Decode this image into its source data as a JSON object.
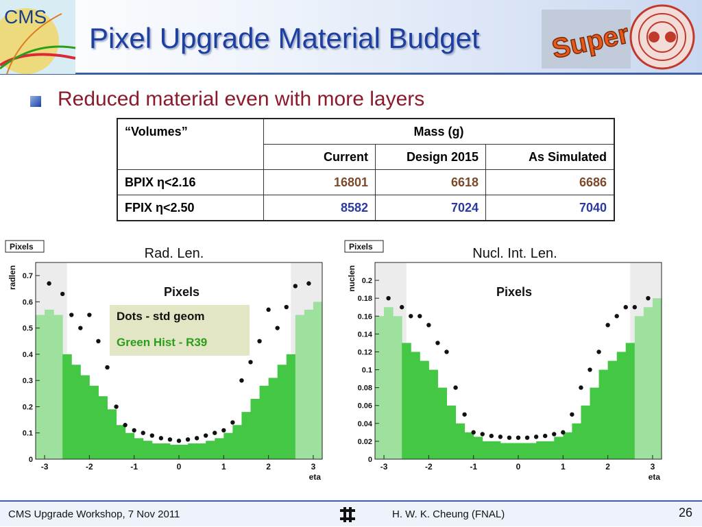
{
  "header": {
    "title": "Pixel Upgrade Material Budget",
    "logo_text": "CMS",
    "super_logo_text": "Super"
  },
  "bullet": "Reduced material even with more layers",
  "table": {
    "corner": "“Volumes”",
    "group_header": "Mass (g)",
    "columns": [
      "Current",
      "Design 2015",
      "As Simulated"
    ],
    "rows": [
      {
        "label": "BPIX η<2.16",
        "values": [
          "16801",
          "6618",
          "6686"
        ]
      },
      {
        "label": "FPIX η<2.50",
        "values": [
          "8582",
          "7024",
          "7040"
        ]
      }
    ]
  },
  "legend": {
    "line1": "Dots - std geom",
    "line2": "Green Hist - R39"
  },
  "colors": {
    "title": "#1f3fa0",
    "bullet_text": "#8b1a2a",
    "hist_green": "#44c744",
    "hist_light": "#9ee09e",
    "brown_values": "#7a4a2a",
    "blue_values": "#2a3aa0"
  },
  "chart_data": [
    {
      "type": "bar",
      "tag": "Pixels",
      "title": "Rad. Len.",
      "inner_title": "Pixels",
      "xlabel": "eta",
      "ylabel": "radlen",
      "xlim": [
        -3.2,
        3.2
      ],
      "ylim": [
        0,
        0.75
      ],
      "xticks": [
        -3,
        -2,
        -1,
        0,
        1,
        2,
        3
      ],
      "yticks": [
        0,
        0.1,
        0.2,
        0.3,
        0.4,
        0.5,
        0.6,
        0.7
      ],
      "series": [
        {
          "name": "Green Hist - R39",
          "x": [
            -3.1,
            -2.9,
            -2.7,
            -2.5,
            -2.3,
            -2.1,
            -1.9,
            -1.7,
            -1.5,
            -1.3,
            -1.1,
            -0.9,
            -0.7,
            -0.5,
            -0.3,
            -0.1,
            0.1,
            0.3,
            0.5,
            0.7,
            0.9,
            1.1,
            1.3,
            1.5,
            1.7,
            1.9,
            2.1,
            2.3,
            2.5,
            2.7,
            2.9,
            3.1
          ],
          "values": [
            0.55,
            0.57,
            0.55,
            0.4,
            0.36,
            0.32,
            0.28,
            0.24,
            0.19,
            0.13,
            0.1,
            0.08,
            0.07,
            0.06,
            0.06,
            0.055,
            0.055,
            0.06,
            0.06,
            0.07,
            0.08,
            0.1,
            0.13,
            0.18,
            0.23,
            0.28,
            0.31,
            0.36,
            0.4,
            0.55,
            0.57,
            0.6
          ]
        },
        {
          "name": "Dots - std geom",
          "x": [
            -2.9,
            -2.6,
            -2.4,
            -2.2,
            -2.0,
            -1.8,
            -1.6,
            -1.4,
            -1.2,
            -1.0,
            -0.8,
            -0.6,
            -0.4,
            -0.2,
            0.0,
            0.2,
            0.4,
            0.6,
            0.8,
            1.0,
            1.2,
            1.4,
            1.6,
            1.8,
            2.0,
            2.2,
            2.4,
            2.6,
            2.9
          ],
          "values": [
            0.67,
            0.63,
            0.55,
            0.5,
            0.55,
            0.45,
            0.35,
            0.2,
            0.13,
            0.11,
            0.1,
            0.09,
            0.08,
            0.075,
            0.07,
            0.075,
            0.08,
            0.09,
            0.1,
            0.11,
            0.14,
            0.3,
            0.37,
            0.45,
            0.57,
            0.5,
            0.58,
            0.66,
            0.67
          ]
        }
      ]
    },
    {
      "type": "bar",
      "tag": "Pixels",
      "title": "Nucl. Int. Len.",
      "inner_title": "Pixels",
      "xlabel": "eta",
      "ylabel": "nuclen",
      "xlim": [
        -3.2,
        3.2
      ],
      "ylim": [
        0,
        0.22
      ],
      "xticks": [
        -3,
        -2,
        -1,
        0,
        1,
        2,
        3
      ],
      "yticks": [
        0,
        0.02,
        0.04,
        0.06,
        0.08,
        0.1,
        0.12,
        0.14,
        0.16,
        0.18,
        0.2
      ],
      "series": [
        {
          "name": "Green Hist - R39",
          "x": [
            -3.1,
            -2.9,
            -2.7,
            -2.5,
            -2.3,
            -2.1,
            -1.9,
            -1.7,
            -1.5,
            -1.3,
            -1.1,
            -0.9,
            -0.7,
            -0.5,
            -0.3,
            -0.1,
            0.1,
            0.3,
            0.5,
            0.7,
            0.9,
            1.1,
            1.3,
            1.5,
            1.7,
            1.9,
            2.1,
            2.3,
            2.5,
            2.7,
            2.9,
            3.1
          ],
          "values": [
            0.16,
            0.17,
            0.16,
            0.13,
            0.12,
            0.11,
            0.1,
            0.08,
            0.06,
            0.04,
            0.03,
            0.025,
            0.02,
            0.02,
            0.018,
            0.018,
            0.018,
            0.018,
            0.02,
            0.02,
            0.025,
            0.03,
            0.04,
            0.06,
            0.08,
            0.1,
            0.11,
            0.12,
            0.13,
            0.16,
            0.17,
            0.18
          ]
        },
        {
          "name": "Dots - std geom",
          "x": [
            -2.9,
            -2.6,
            -2.4,
            -2.2,
            -2.0,
            -1.8,
            -1.6,
            -1.4,
            -1.2,
            -1.0,
            -0.8,
            -0.6,
            -0.4,
            -0.2,
            0.0,
            0.2,
            0.4,
            0.6,
            0.8,
            1.0,
            1.2,
            1.4,
            1.6,
            1.8,
            2.0,
            2.2,
            2.4,
            2.6,
            2.9
          ],
          "values": [
            0.18,
            0.17,
            0.16,
            0.16,
            0.15,
            0.13,
            0.12,
            0.08,
            0.05,
            0.03,
            0.028,
            0.026,
            0.025,
            0.024,
            0.024,
            0.024,
            0.025,
            0.026,
            0.028,
            0.03,
            0.05,
            0.08,
            0.1,
            0.12,
            0.15,
            0.16,
            0.17,
            0.17,
            0.18
          ]
        }
      ]
    }
  ],
  "footer": {
    "left": "CMS Upgrade Workshop, 7 Nov 2011",
    "center": "H. W. K. Cheung (FNAL)",
    "page": "26"
  }
}
